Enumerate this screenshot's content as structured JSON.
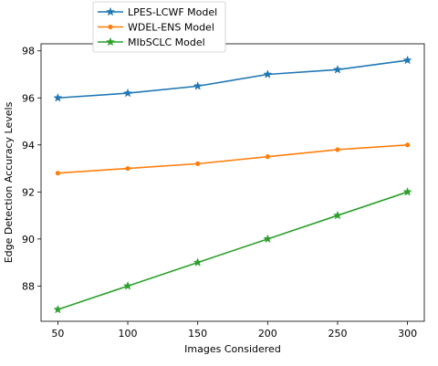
{
  "chart_data": {
    "type": "line",
    "title": "",
    "xlabel": "Images Considered",
    "ylabel": "Edge Detection Accuracy Levels",
    "x": [
      50,
      100,
      150,
      200,
      250,
      300
    ],
    "xticks": [
      "50",
      "100",
      "150",
      "200",
      "250",
      "300"
    ],
    "yticks": [
      "88",
      "90",
      "92",
      "94",
      "96",
      "98"
    ],
    "xlim": [
      38,
      312
    ],
    "ylim": [
      86.5,
      98.3
    ],
    "grid": false,
    "legend_position": "top-left",
    "series": [
      {
        "name": "LPES-LCWF Model",
        "values": [
          96.0,
          96.2,
          96.5,
          97.0,
          97.2,
          97.6
        ],
        "color": "#1f77b4",
        "marker": "star"
      },
      {
        "name": "WDEL-ENS Model",
        "values": [
          92.8,
          93.0,
          93.2,
          93.5,
          93.8,
          94.0
        ],
        "color": "#ff7f0e",
        "marker": "dot"
      },
      {
        "name": "MIbSCLC Model",
        "values": [
          87.0,
          88.0,
          89.0,
          90.0,
          91.0,
          92.0
        ],
        "color": "#2ca02c",
        "marker": "star"
      }
    ]
  }
}
